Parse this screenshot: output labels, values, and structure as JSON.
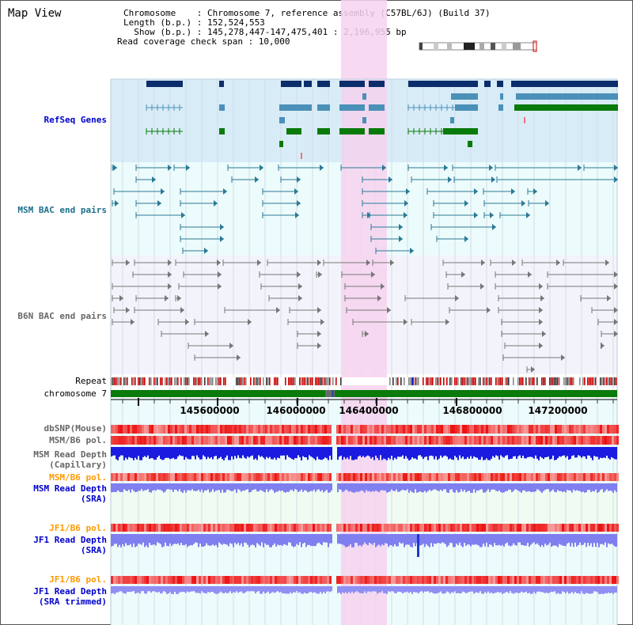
{
  "panel_title": "Map View",
  "info": {
    "chromosome_line": "Chromosome    : Chromosome 7, reference assembly (C57BL/6J) (Build 37)",
    "length_line": "Length (b.p.) : 152,524,553",
    "show_line": "  Show (b.p.) : 145,278,447-147,475,401 : 2,196,955 bp",
    "coverage_line": "Read coverage check span : 10,000"
  },
  "track_labels": {
    "refseq": "RefSeq Genes",
    "msm_bac": "MSM BAC end pairs",
    "b6n_bac": "B6N BAC end pairs",
    "repeat": "Repeat",
    "chromosome": "chromosome 7",
    "dbsnp": "dbSNP(Mouse)",
    "msm_b6_pol": "MSM/B6 pol.",
    "msm_depth_cap_1": "MSM Read Depth",
    "msm_depth_cap_2": "(Capillary)",
    "msm_b6_pol_2": "MSM/B6 pol.",
    "msm_depth_sra_1": "MSM Read Depth",
    "msm_depth_sra_2": "(SRA)",
    "jf1_b6_pol": "JF1/B6 pol.",
    "jf1_depth_sra_1": "JF1 Read Depth",
    "jf1_depth_sra_2": "(SRA)",
    "jf1_b6_pol_2": "JF1/B6 pol.",
    "jf1_depth_trim_1": "JF1 Read Depth",
    "jf1_depth_trim_2": "(SRA trimmed)"
  },
  "axis_ticks": [
    "145600000",
    "146000000",
    "146400000",
    "146800000",
    "147200000"
  ],
  "colors": {
    "refseq_bg": "#d8ecf7",
    "track_bg": "#ecfbfb",
    "highlight": "#f6d2ee",
    "refseq_dark": "#0c2d6b",
    "refseq_mid": "#4a90b8",
    "refseq_green": "#0a7a0a",
    "msm_bac": "#2a7a96",
    "b6n_bac": "#777777",
    "chromosome": "#0a7a0a",
    "depth_blue": "#1a1ae0",
    "depth_light": "#7f7ff0",
    "label_blue": "#0000cc",
    "label_teal": "#1a6f8a",
    "label_gray": "#666666",
    "label_orange": "#ff9900"
  }
}
